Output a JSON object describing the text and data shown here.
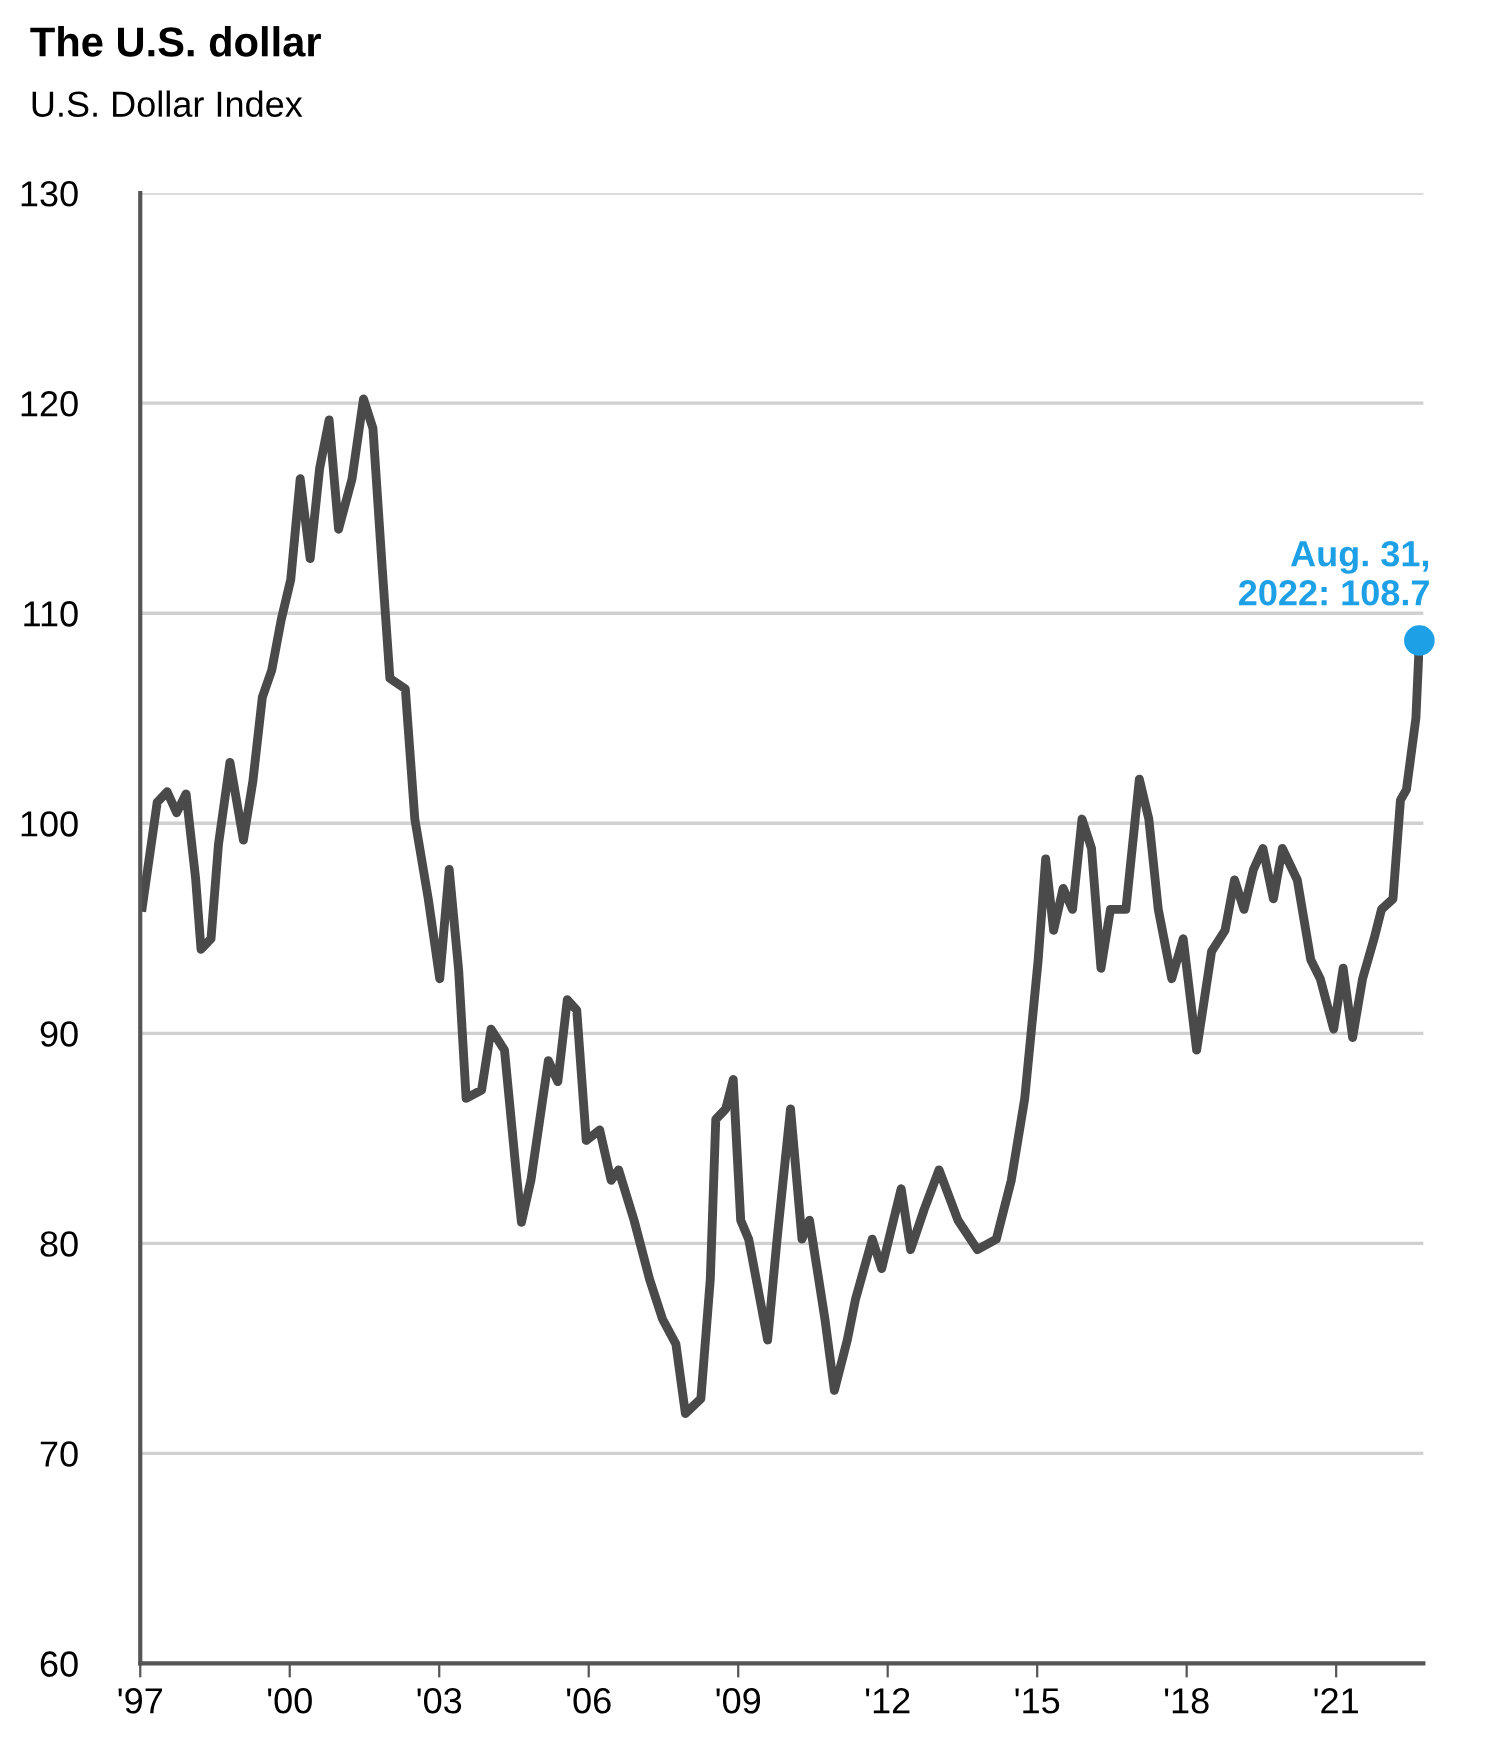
{
  "chart_data": {
    "type": "line",
    "title": "The U.S. dollar",
    "subtitle": "U.S. Dollar Index",
    "x": [
      1997.04,
      1997.34,
      1997.54,
      1997.73,
      1997.92,
      1998.11,
      1998.22,
      1998.42,
      1998.57,
      1998.8,
      1999.07,
      1999.26,
      1999.45,
      1999.64,
      1999.83,
      2000.02,
      2000.21,
      2000.41,
      2000.6,
      2000.79,
      2000.98,
      2001.25,
      2001.48,
      2001.67,
      2001.86,
      2002.01,
      2002.32,
      2002.51,
      2002.78,
      2003.01,
      2003.2,
      2003.39,
      2003.54,
      2003.85,
      2004.04,
      2004.31,
      2004.54,
      2004.65,
      2004.84,
      2005.19,
      2005.38,
      2005.57,
      2005.76,
      2005.95,
      2006.22,
      2006.45,
      2006.6,
      2006.91,
      2007.22,
      2007.48,
      2007.75,
      2007.94,
      2008.25,
      2008.44,
      2008.55,
      2008.75,
      2008.9,
      2009.05,
      2009.21,
      2009.59,
      2009.78,
      2010.05,
      2010.28,
      2010.43,
      2010.74,
      2010.93,
      2011.19,
      2011.35,
      2011.69,
      2011.88,
      2012.27,
      2012.46,
      2012.73,
      2013.03,
      2013.41,
      2013.8,
      2014.18,
      2014.48,
      2014.75,
      2015.02,
      2015.17,
      2015.33,
      2015.52,
      2015.71,
      2015.9,
      2016.09,
      2016.28,
      2016.47,
      2016.78,
      2017.05,
      2017.24,
      2017.43,
      2017.7,
      2017.93,
      2018.2,
      2018.5,
      2018.77,
      2018.96,
      2019.15,
      2019.34,
      2019.53,
      2019.74,
      2019.92,
      2020.22,
      2020.49,
      2020.68,
      2020.95,
      2021.14,
      2021.33,
      2021.53,
      2021.76,
      2021.91,
      2022.14,
      2022.29,
      2022.41,
      2022.6,
      2022.67
    ],
    "series": [
      {
        "color": "#4a4a4a",
        "values": [
          96,
          101,
          101.5,
          100.5,
          101.4,
          97.4,
          94,
          94.5,
          99,
          102.9,
          99.2,
          102,
          106,
          107.3,
          109.7,
          111.6,
          116.4,
          112.6,
          116.9,
          119.2,
          114,
          116.4,
          120.2,
          118.8,
          112,
          106.9,
          106.4,
          100.2,
          96.4,
          92.6,
          97.8,
          93,
          86.9,
          87.3,
          90.2,
          89.2,
          83.5,
          81,
          83,
          88.7,
          87.7,
          91.6,
          91.1,
          84.9,
          85.4,
          83,
          83.5,
          81.1,
          78.3,
          76.4,
          75.2,
          71.9,
          72.6,
          78.3,
          85.9,
          86.4,
          87.8,
          81.1,
          80.2,
          75.4,
          80.2,
          86.4,
          80.2,
          81.1,
          76.4,
          73,
          75.4,
          77.3,
          80.2,
          78.8,
          82.6,
          79.7,
          81.6,
          83.5,
          81.1,
          79.7,
          80.2,
          83,
          86.9,
          93.5,
          98.3,
          94.9,
          96.9,
          95.9,
          100.2,
          98.8,
          93.1,
          95.9,
          95.9,
          102.1,
          100.2,
          95.9,
          92.6,
          94.5,
          89.2,
          93.9,
          94.9,
          97.3,
          95.9,
          97.8,
          98.8,
          96.4,
          98.8,
          97.3,
          93.5,
          92.6,
          90.2,
          93.1,
          89.8,
          92.6,
          94.5,
          95.9,
          96.4,
          101.1,
          101.6,
          105,
          108.7
        ]
      }
    ],
    "xlim": [
      1997,
      2022.75
    ],
    "xticks": [
      {
        "value": 1997,
        "label": "'97"
      },
      {
        "value": 2000,
        "label": "'00"
      },
      {
        "value": 2003,
        "label": "'03"
      },
      {
        "value": 2006,
        "label": "'06"
      },
      {
        "value": 2009,
        "label": "'09"
      },
      {
        "value": 2012,
        "label": "'12"
      },
      {
        "value": 2015,
        "label": "'15"
      },
      {
        "value": 2018,
        "label": "'18"
      },
      {
        "value": 2021,
        "label": "'21"
      }
    ],
    "ylim": [
      60,
      130
    ],
    "yticks": [
      60,
      70,
      80,
      90,
      100,
      110,
      120,
      130
    ],
    "grid": "y",
    "legend": false,
    "annotations": [
      {
        "text": "Aug. 31,\n2022: 108.7",
        "x": 2022.67,
        "y": 108.7
      }
    ]
  }
}
